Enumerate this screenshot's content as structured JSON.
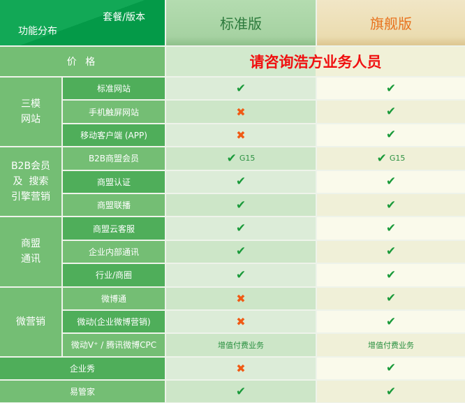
{
  "header": {
    "plan_label": "套餐/版本",
    "feature_label": "功能分布",
    "standard": "标准版",
    "flagship": "旗舰版"
  },
  "price": {
    "label": "价 格",
    "value": "请咨询浩方业务人员"
  },
  "colors": {
    "check": "#1a9a3a",
    "cross": "#f05a14",
    "price_text": "#f01010"
  },
  "groups": [
    {
      "name": "三模\n网站",
      "items": [
        {
          "label": "标准网站",
          "standard": {
            "icon": "check"
          },
          "flagship": {
            "icon": "check"
          }
        },
        {
          "label": "手机触屏网站",
          "standard": {
            "icon": "cross"
          },
          "flagship": {
            "icon": "check"
          }
        },
        {
          "label": "移动客户端 (APP)",
          "standard": {
            "icon": "cross"
          },
          "flagship": {
            "icon": "check"
          }
        }
      ]
    },
    {
      "name": "B2B会员\n及  搜索\n引擎营销",
      "items": [
        {
          "label": "B2B商盟会员",
          "standard": {
            "icon": "check",
            "text": "G15"
          },
          "flagship": {
            "icon": "check",
            "text": "G15"
          }
        },
        {
          "label": "商盟认证",
          "standard": {
            "icon": "check"
          },
          "flagship": {
            "icon": "check"
          }
        },
        {
          "label": "商盟联播",
          "standard": {
            "icon": "check"
          },
          "flagship": {
            "icon": "check"
          }
        }
      ]
    },
    {
      "name": "商盟\n通讯",
      "items": [
        {
          "label": "商盟云客服",
          "standard": {
            "icon": "check"
          },
          "flagship": {
            "icon": "check"
          }
        },
        {
          "label": "企业内部通讯",
          "standard": {
            "icon": "check"
          },
          "flagship": {
            "icon": "check"
          }
        },
        {
          "label": "行业/商圈",
          "standard": {
            "icon": "check"
          },
          "flagship": {
            "icon": "check"
          }
        }
      ]
    },
    {
      "name": "微营销",
      "items": [
        {
          "label": "微博通",
          "standard": {
            "icon": "cross"
          },
          "flagship": {
            "icon": "check"
          }
        },
        {
          "label": "微动(企业微博营销)",
          "standard": {
            "icon": "cross"
          },
          "flagship": {
            "icon": "check"
          }
        },
        {
          "label": "微动V⁺ / 腾讯微博CPC",
          "standard": {
            "text": "增值付费业务"
          },
          "flagship": {
            "text": "增值付费业务"
          }
        }
      ]
    },
    {
      "name": "企业秀",
      "single": true,
      "items": [
        {
          "standard": {
            "icon": "cross"
          },
          "flagship": {
            "icon": "check"
          }
        }
      ]
    },
    {
      "name": "易管家",
      "single": true,
      "items": [
        {
          "standard": {
            "icon": "check"
          },
          "flagship": {
            "icon": "check"
          }
        }
      ]
    }
  ]
}
